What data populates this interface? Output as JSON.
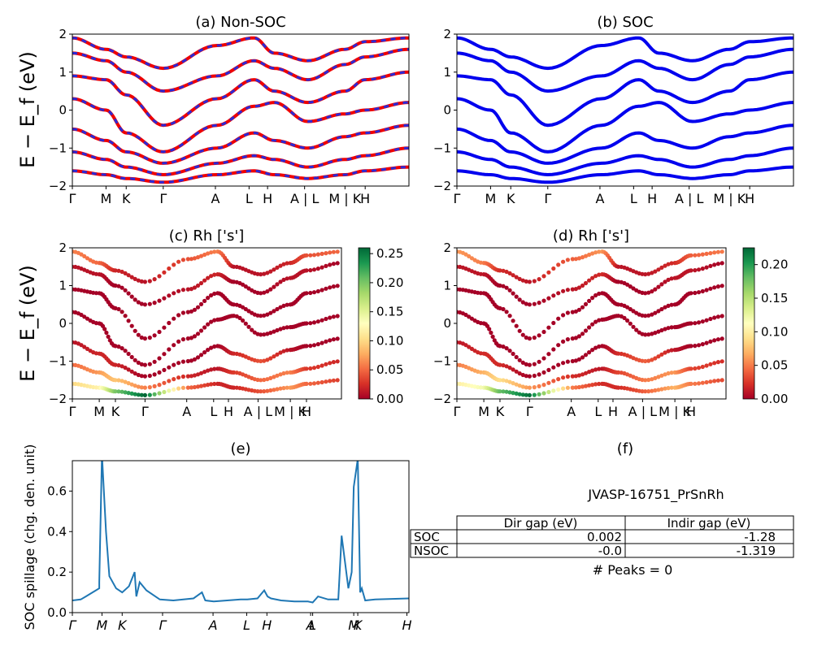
{
  "chart_data": [
    {
      "panel": "a",
      "type": "line",
      "title": "(a) Non-SOC",
      "ylabel": "E − E_f (eV)",
      "ylim": [
        -2,
        2
      ],
      "yticks": [
        "2",
        "1",
        "0",
        "−1",
        "−2"
      ],
      "kpath_labels": [
        "Γ",
        "M",
        "K",
        "Γ",
        "A",
        "L",
        "H",
        "A | L",
        "M | K",
        "H"
      ],
      "series": [
        {
          "color": "#ee0000",
          "style": "solid"
        },
        {
          "color": "#2a2ad8",
          "style": "dashed"
        }
      ],
      "x": [
        0,
        0.1,
        0.16,
        0.27,
        0.43,
        0.54,
        0.6,
        0.7,
        0.81,
        0.87,
        1.0
      ],
      "bands": [
        [
          1.9,
          1.6,
          1.4,
          1.1,
          1.7,
          1.9,
          1.5,
          1.3,
          1.6,
          1.8,
          1.9
        ],
        [
          1.5,
          1.3,
          1.0,
          0.5,
          0.9,
          1.3,
          1.1,
          0.8,
          1.2,
          1.4,
          1.6
        ],
        [
          0.9,
          0.8,
          0.4,
          -0.4,
          0.3,
          0.8,
          0.5,
          0.2,
          0.5,
          0.8,
          1.0
        ],
        [
          0.3,
          0.0,
          -0.6,
          -1.1,
          -0.4,
          0.1,
          0.2,
          -0.3,
          -0.1,
          0.0,
          0.2
        ],
        [
          -0.5,
          -0.8,
          -1.1,
          -1.4,
          -1.0,
          -0.6,
          -0.8,
          -1.0,
          -0.7,
          -0.6,
          -0.4
        ],
        [
          -1.1,
          -1.3,
          -1.5,
          -1.7,
          -1.4,
          -1.2,
          -1.3,
          -1.5,
          -1.3,
          -1.2,
          -1.0
        ],
        [
          -1.6,
          -1.7,
          -1.8,
          -1.9,
          -1.7,
          -1.6,
          -1.7,
          -1.8,
          -1.7,
          -1.6,
          -1.5
        ]
      ]
    },
    {
      "panel": "b",
      "type": "line",
      "title": "(b) SOC",
      "ylim": [
        -2,
        2
      ],
      "yticks": [
        "2",
        "1",
        "0",
        "−1",
        "−2"
      ],
      "kpath_labels": [
        "Γ",
        "M",
        "K",
        "Γ",
        "A",
        "L",
        "H",
        "A | L",
        "M | K",
        "H"
      ],
      "series": [
        {
          "color": "#0000ee",
          "style": "solid"
        }
      ],
      "x": [
        0,
        0.1,
        0.16,
        0.27,
        0.43,
        0.54,
        0.6,
        0.7,
        0.81,
        0.87,
        1.0
      ],
      "bands": [
        [
          1.9,
          1.6,
          1.4,
          1.1,
          1.7,
          1.9,
          1.5,
          1.3,
          1.6,
          1.8,
          1.9
        ],
        [
          1.5,
          1.3,
          1.0,
          0.5,
          0.9,
          1.3,
          1.1,
          0.8,
          1.2,
          1.4,
          1.6
        ],
        [
          0.9,
          0.8,
          0.4,
          -0.4,
          0.3,
          0.8,
          0.5,
          0.2,
          0.5,
          0.8,
          1.0
        ],
        [
          0.3,
          0.0,
          -0.6,
          -1.1,
          -0.4,
          0.1,
          0.2,
          -0.3,
          -0.1,
          0.0,
          0.2
        ],
        [
          -0.5,
          -0.8,
          -1.1,
          -1.4,
          -1.0,
          -0.6,
          -0.8,
          -1.0,
          -0.7,
          -0.6,
          -0.4
        ],
        [
          -1.1,
          -1.3,
          -1.5,
          -1.7,
          -1.4,
          -1.2,
          -1.3,
          -1.5,
          -1.3,
          -1.2,
          -1.0
        ],
        [
          -1.6,
          -1.7,
          -1.8,
          -1.9,
          -1.7,
          -1.6,
          -1.7,
          -1.8,
          -1.7,
          -1.6,
          -1.5
        ]
      ]
    },
    {
      "panel": "c",
      "type": "scatter",
      "title": "(c)  Rh ['s']",
      "ylabel": "E − E_f (eV)",
      "ylim": [
        -2,
        2
      ],
      "yticks": [
        "2",
        "1",
        "0",
        "−1",
        "−2"
      ],
      "kpath_labels": [
        "Γ",
        "M",
        "K",
        "Γ",
        "A",
        "L",
        "H",
        "A | L",
        "M | K",
        "H"
      ],
      "colorbar": {
        "min": 0,
        "max": 0.26,
        "ticks": [
          "0.25",
          "0.20",
          "0.15",
          "0.10",
          "0.05",
          "0.00"
        ],
        "tick_values": [
          0.25,
          0.2,
          0.15,
          0.1,
          0.05,
          0.0
        ]
      },
      "x": [
        0,
        0.1,
        0.16,
        0.27,
        0.43,
        0.54,
        0.6,
        0.7,
        0.81,
        0.87,
        1.0
      ],
      "bands": [
        [
          1.9,
          1.6,
          1.4,
          1.1,
          1.7,
          1.9,
          1.5,
          1.3,
          1.6,
          1.8,
          1.9
        ],
        [
          1.5,
          1.3,
          1.0,
          0.5,
          0.9,
          1.3,
          1.1,
          0.8,
          1.2,
          1.4,
          1.6
        ],
        [
          0.9,
          0.8,
          0.4,
          -0.4,
          0.3,
          0.8,
          0.5,
          0.2,
          0.5,
          0.8,
          1.0
        ],
        [
          0.3,
          0.0,
          -0.6,
          -1.1,
          -0.4,
          0.1,
          0.2,
          -0.3,
          -0.1,
          0.0,
          0.2
        ],
        [
          -0.5,
          -0.8,
          -1.1,
          -1.4,
          -1.0,
          -0.6,
          -0.8,
          -1.0,
          -0.7,
          -0.6,
          -0.4
        ],
        [
          -1.1,
          -1.3,
          -1.5,
          -1.7,
          -1.4,
          -1.2,
          -1.3,
          -1.5,
          -1.3,
          -1.2,
          -1.0
        ],
        [
          -1.6,
          -1.7,
          -1.8,
          -1.9,
          -1.7,
          -1.6,
          -1.7,
          -1.8,
          -1.7,
          -1.6,
          -1.5
        ]
      ],
      "weights": [
        [
          0.06,
          0.05,
          0.02,
          0.01,
          0.04,
          0.06,
          0.01,
          0.01,
          0.02,
          0.04,
          0.05
        ],
        [
          0.01,
          0.01,
          0.0,
          0.0,
          0.01,
          0.02,
          0.0,
          0.0,
          0.01,
          0.01,
          0.0
        ],
        [
          0.0,
          0.0,
          0.0,
          0.0,
          0.0,
          0.0,
          0.0,
          0.0,
          0.0,
          0.0,
          0.0
        ],
        [
          0.0,
          0.0,
          0.0,
          0.0,
          0.0,
          0.0,
          0.0,
          0.0,
          0.0,
          0.0,
          0.0
        ],
        [
          0.01,
          0.02,
          0.02,
          0.0,
          0.0,
          0.0,
          0.02,
          0.04,
          0.01,
          0.0,
          0.0
        ],
        [
          0.05,
          0.07,
          0.09,
          0.06,
          0.02,
          0.01,
          0.03,
          0.05,
          0.06,
          0.03,
          0.02
        ],
        [
          0.1,
          0.12,
          0.2,
          0.26,
          0.05,
          0.02,
          0.02,
          0.04,
          0.07,
          0.05,
          0.03
        ]
      ]
    },
    {
      "panel": "d",
      "type": "scatter",
      "title": "(d) Rh ['s']",
      "ylim": [
        -2,
        2
      ],
      "yticks": [
        "2",
        "1",
        "0",
        "−1",
        "−2"
      ],
      "kpath_labels": [
        "Γ",
        "M",
        "K",
        "Γ",
        "A",
        "L",
        "H",
        "A | L",
        "M | K",
        "H"
      ],
      "colorbar": {
        "min": 0,
        "max": 0.225,
        "ticks": [
          "0.20",
          "0.15",
          "0.10",
          "0.05",
          "0.00"
        ],
        "tick_values": [
          0.2,
          0.15,
          0.1,
          0.05,
          0.0
        ]
      },
      "x": [
        0,
        0.1,
        0.16,
        0.27,
        0.43,
        0.54,
        0.6,
        0.7,
        0.81,
        0.87,
        1.0
      ],
      "bands": [
        [
          1.9,
          1.6,
          1.4,
          1.1,
          1.7,
          1.9,
          1.5,
          1.3,
          1.6,
          1.8,
          1.9
        ],
        [
          1.5,
          1.3,
          1.0,
          0.5,
          0.9,
          1.3,
          1.1,
          0.8,
          1.2,
          1.4,
          1.6
        ],
        [
          0.9,
          0.8,
          0.4,
          -0.4,
          0.3,
          0.8,
          0.5,
          0.2,
          0.5,
          0.8,
          1.0
        ],
        [
          0.3,
          0.0,
          -0.6,
          -1.1,
          -0.4,
          0.1,
          0.2,
          -0.3,
          -0.1,
          0.0,
          0.2
        ],
        [
          -0.5,
          -0.8,
          -1.1,
          -1.4,
          -1.0,
          -0.6,
          -0.8,
          -1.0,
          -0.7,
          -0.6,
          -0.4
        ],
        [
          -1.1,
          -1.3,
          -1.5,
          -1.7,
          -1.4,
          -1.2,
          -1.3,
          -1.5,
          -1.3,
          -1.2,
          -1.0
        ],
        [
          -1.6,
          -1.7,
          -1.8,
          -1.9,
          -1.7,
          -1.6,
          -1.7,
          -1.8,
          -1.7,
          -1.6,
          -1.5
        ]
      ],
      "weights": [
        [
          0.06,
          0.05,
          0.02,
          0.01,
          0.04,
          0.06,
          0.01,
          0.01,
          0.02,
          0.04,
          0.05
        ],
        [
          0.01,
          0.01,
          0.0,
          0.0,
          0.01,
          0.02,
          0.0,
          0.0,
          0.01,
          0.01,
          0.0
        ],
        [
          0.0,
          0.0,
          0.0,
          0.0,
          0.0,
          0.0,
          0.0,
          0.0,
          0.0,
          0.0,
          0.0
        ],
        [
          0.0,
          0.0,
          0.0,
          0.0,
          0.0,
          0.0,
          0.0,
          0.0,
          0.0,
          0.0,
          0.0
        ],
        [
          0.01,
          0.02,
          0.02,
          0.0,
          0.0,
          0.0,
          0.02,
          0.04,
          0.01,
          0.0,
          0.0
        ],
        [
          0.05,
          0.07,
          0.09,
          0.06,
          0.02,
          0.01,
          0.03,
          0.05,
          0.06,
          0.03,
          0.02
        ],
        [
          0.1,
          0.12,
          0.18,
          0.22,
          0.05,
          0.02,
          0.02,
          0.04,
          0.07,
          0.05,
          0.03
        ]
      ]
    },
    {
      "panel": "e",
      "type": "line",
      "title": "(e)",
      "ylabel": "SOC spillage (chg. den. unit)",
      "ylim": [
        0,
        0.75
      ],
      "yticks": [
        "0.0",
        "0.2",
        "0.4",
        "0.6"
      ],
      "ytick_values": [
        0,
        0.2,
        0.4,
        0.6
      ],
      "color": "#1f77b4",
      "xtick_labels": [
        "Γ",
        "M",
        "K",
        "Γ",
        "A",
        "L",
        "H",
        "A",
        "L",
        "M",
        "K",
        "H"
      ],
      "xtick_positions": [
        0.0,
        0.088,
        0.148,
        0.268,
        0.418,
        0.518,
        0.578,
        0.708,
        0.714,
        0.836,
        0.848,
        0.994
      ],
      "x": [
        0,
        0.025,
        0.04,
        0.06,
        0.08,
        0.08,
        0.088,
        0.1,
        0.11,
        0.13,
        0.148,
        0.168,
        0.185,
        0.19,
        0.2,
        0.22,
        0.26,
        0.3,
        0.36,
        0.385,
        0.395,
        0.42,
        0.46,
        0.5,
        0.52,
        0.55,
        0.56,
        0.57,
        0.58,
        0.59,
        0.62,
        0.66,
        0.7,
        0.714,
        0.73,
        0.76,
        0.79,
        0.8,
        0.82,
        0.83,
        0.836,
        0.848,
        0.855,
        0.86,
        0.87,
        0.9,
        1.0
      ],
      "y": [
        0.06,
        0.065,
        0.08,
        0.1,
        0.12,
        0.15,
        0.78,
        0.4,
        0.18,
        0.12,
        0.1,
        0.13,
        0.2,
        0.08,
        0.15,
        0.11,
        0.065,
        0.06,
        0.07,
        0.1,
        0.06,
        0.055,
        0.06,
        0.065,
        0.065,
        0.07,
        0.09,
        0.11,
        0.08,
        0.07,
        0.06,
        0.055,
        0.055,
        0.05,
        0.08,
        0.065,
        0.065,
        0.38,
        0.12,
        0.2,
        0.62,
        0.76,
        0.1,
        0.12,
        0.06,
        0.065,
        0.07
      ]
    },
    {
      "panel": "f",
      "type": "table",
      "title": "(f)",
      "material": "JVASP-16751_PrSnRh",
      "columns": [
        "Dir gap (eV)",
        "Indir gap (eV)"
      ],
      "rows": [
        {
          "label": "SOC",
          "values": [
            "0.002",
            "-1.28"
          ]
        },
        {
          "label": "NSOC",
          "values": [
            "-0.0",
            "-1.319"
          ]
        }
      ],
      "footer": "# Peaks = 0"
    }
  ]
}
